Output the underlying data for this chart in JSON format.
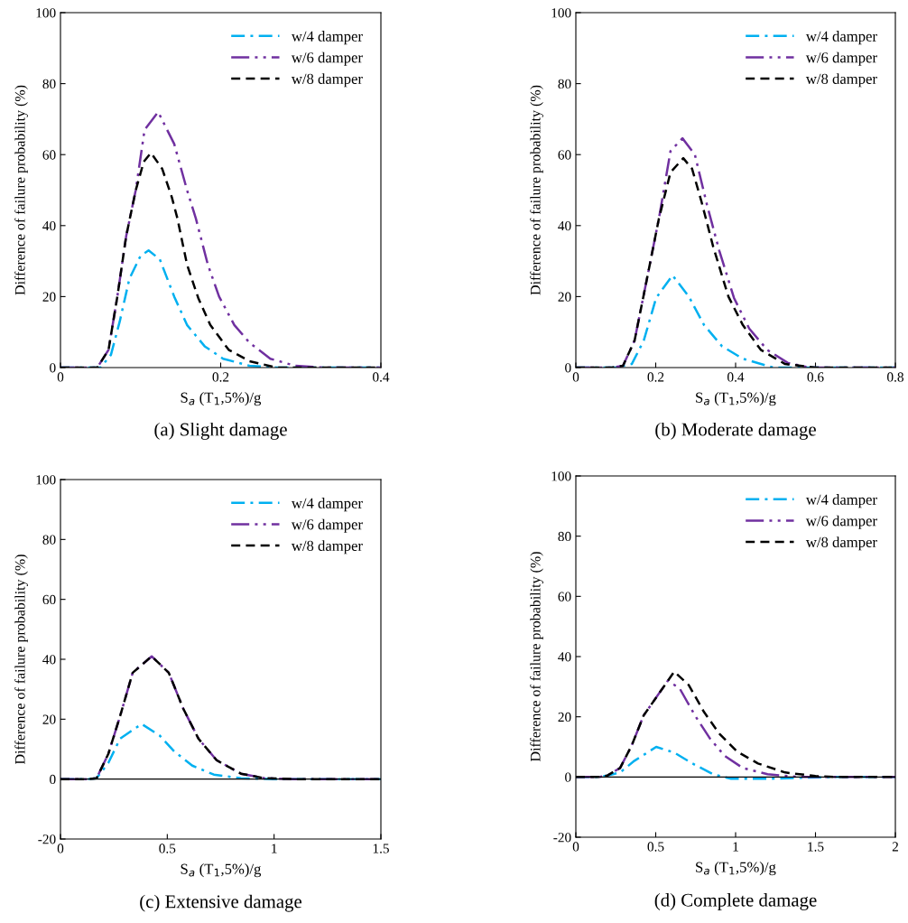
{
  "chart_data": [
    {
      "type": "line",
      "title": "(a) Slight damage",
      "xlabel": "S$_{a}$ (T$_{1}$,5%)/g",
      "ylabel": "Difference of failure probability (%)",
      "xlim": [
        0,
        0.4
      ],
      "xticks": [
        0,
        0.2,
        0.4
      ],
      "ylim": [
        0,
        100
      ],
      "yticks": [
        0,
        20,
        40,
        60,
        80,
        100
      ],
      "legend": "top right",
      "grid": false,
      "marker": "none",
      "series": [
        {
          "name": "w/4 damper",
          "color": "#00b0f0",
          "line_style": "dashdot",
          "x": [
            0,
            0.05,
            0.063,
            0.074,
            0.086,
            0.1,
            0.11,
            0.124,
            0.142,
            0.158,
            0.18,
            0.203,
            0.236,
            0.27,
            0.4
          ],
          "values": [
            0,
            0,
            3.6,
            13,
            25,
            31.5,
            33,
            30.5,
            20,
            12,
            6,
            2.5,
            0.5,
            0,
            0
          ]
        },
        {
          "name": "w/6 damper",
          "color": "#7030a0",
          "line_style": "dashdotdot",
          "x": [
            0,
            0.046,
            0.06,
            0.071,
            0.082,
            0.094,
            0.105,
            0.122,
            0.142,
            0.158,
            0.169,
            0.184,
            0.198,
            0.217,
            0.236,
            0.262,
            0.293,
            0.33,
            0.4
          ],
          "values": [
            0,
            0,
            5,
            20,
            37,
            50,
            67,
            72,
            63,
            50,
            42,
            29,
            20,
            12,
            7,
            2.5,
            0.5,
            0,
            0
          ]
        },
        {
          "name": "w/8 damper",
          "color": "#000000",
          "line_style": "dashed",
          "x": [
            0,
            0.046,
            0.06,
            0.071,
            0.082,
            0.094,
            0.104,
            0.113,
            0.127,
            0.139,
            0.146,
            0.158,
            0.172,
            0.187,
            0.21,
            0.236,
            0.27,
            0.4
          ],
          "values": [
            0,
            0,
            5,
            20,
            37,
            50,
            58,
            60.5,
            56,
            48,
            42,
            29,
            19.6,
            12,
            5,
            1.8,
            0,
            0
          ]
        }
      ]
    },
    {
      "type": "line",
      "title": "(b) Moderate damage",
      "xlabel": "S$_{a}$ (T$_{1}$,5%)/g",
      "ylabel": "Difference of failure probability (%)",
      "xlim": [
        0,
        0.8
      ],
      "xticks": [
        0,
        0.2,
        0.4,
        0.6,
        0.8
      ],
      "ylim": [
        0,
        100
      ],
      "yticks": [
        0,
        20,
        40,
        60,
        80,
        100
      ],
      "legend": "top right",
      "grid": false,
      "marker": "none",
      "series": [
        {
          "name": "w/4 damper",
          "color": "#00b0f0",
          "line_style": "dashdot",
          "x": [
            0,
            0.1,
            0.14,
            0.17,
            0.201,
            0.242,
            0.283,
            0.321,
            0.366,
            0.418,
            0.495,
            0.8
          ],
          "values": [
            0,
            0,
            1,
            7.6,
            19.6,
            26,
            20,
            12,
            6,
            2.5,
            0,
            0
          ]
        },
        {
          "name": "w/6 damper",
          "color": "#7030a0",
          "line_style": "dashdotdot",
          "x": [
            0,
            0.09,
            0.118,
            0.147,
            0.178,
            0.208,
            0.237,
            0.267,
            0.298,
            0.328,
            0.359,
            0.396,
            0.434,
            0.479,
            0.531,
            0.585,
            0.8
          ],
          "values": [
            0,
            0,
            0.5,
            7.6,
            25,
            42,
            61,
            64.6,
            60,
            46,
            33,
            19.6,
            11,
            5,
            1.3,
            0,
            0
          ]
        },
        {
          "name": "w/8 damper",
          "color": "#000000",
          "line_style": "dashed",
          "x": [
            0,
            0.09,
            0.118,
            0.147,
            0.178,
            0.208,
            0.237,
            0.269,
            0.291,
            0.314,
            0.344,
            0.382,
            0.418,
            0.463,
            0.524,
            0.6,
            0.8
          ],
          "values": [
            0,
            0,
            0.5,
            7.6,
            25,
            42,
            55,
            59,
            56,
            47,
            34,
            20,
            12,
            5,
            1,
            0,
            0
          ]
        }
      ]
    },
    {
      "type": "line",
      "title": "(c) Extensive damage",
      "xlabel": "S$_{a}$ (T$_{1}$,5%)/g",
      "ylabel": "Difference of failure probability (%)",
      "xlim": [
        0,
        1.5
      ],
      "xticks": [
        0,
        0.5,
        1,
        1.5
      ],
      "ylim": [
        -20,
        100
      ],
      "yticks": [
        -20,
        0,
        20,
        40,
        60,
        80,
        100
      ],
      "legend": "top right",
      "grid": false,
      "marker": "none",
      "ref_lines": [
        {
          "axis": "y",
          "value": 0,
          "color": "#000000"
        }
      ],
      "series": [
        {
          "name": "w/4 damper",
          "color": "#00b0f0",
          "line_style": "dashdot",
          "x": [
            0,
            0.127,
            0.169,
            0.224,
            0.279,
            0.38,
            0.465,
            0.532,
            0.617,
            0.718,
            0.845,
            1.0,
            1.5
          ],
          "values": [
            0,
            0,
            0.3,
            5.4,
            13.5,
            18.4,
            14.5,
            9.3,
            4.5,
            1.5,
            0.3,
            0,
            0
          ]
        },
        {
          "name": "w/6 damper",
          "color": "#7030a0",
          "line_style": "dashdotdot",
          "x": [
            0,
            0.127,
            0.169,
            0.224,
            0.279,
            0.338,
            0.427,
            0.507,
            0.575,
            0.646,
            0.731,
            0.845,
            0.955,
            1.1,
            1.5
          ],
          "values": [
            0,
            0,
            0.3,
            8.4,
            21,
            35.5,
            41,
            35.5,
            23.5,
            13.5,
            6.3,
            1.8,
            0.3,
            0,
            0
          ]
        },
        {
          "name": "w/8 damper",
          "color": "#000000",
          "line_style": "dashed",
          "x": [
            0,
            0.127,
            0.169,
            0.224,
            0.279,
            0.338,
            0.427,
            0.507,
            0.575,
            0.646,
            0.731,
            0.845,
            0.955,
            1.1,
            1.5
          ],
          "values": [
            0,
            0,
            0.3,
            8.4,
            21,
            35.5,
            41,
            35.5,
            23.5,
            13.5,
            6.3,
            1.8,
            0.3,
            0,
            0
          ]
        }
      ]
    },
    {
      "type": "line",
      "title": "(d) Complete damage",
      "xlabel": "S$_{a}$ (T$_{1}$,5%)/g",
      "ylabel": "Difference of failure probability (%)",
      "xlim": [
        0,
        2
      ],
      "xticks": [
        0,
        0.5,
        1,
        1.5,
        2
      ],
      "ylim": [
        -20,
        100
      ],
      "yticks": [
        -20,
        0,
        20,
        40,
        60,
        80,
        100
      ],
      "legend": "top right",
      "grid": false,
      "marker": "none",
      "ref_lines": [
        {
          "axis": "y",
          "value": 0,
          "color": "#000000"
        }
      ],
      "series": [
        {
          "name": "w/4 damper",
          "color": "#00b0f0",
          "line_style": "dashdot",
          "x": [
            0,
            0.15,
            0.198,
            0.277,
            0.367,
            0.503,
            0.616,
            0.729,
            0.859,
            0.972,
            1.2,
            1.4,
            1.6,
            2
          ],
          "values": [
            0,
            0,
            0.5,
            1.5,
            5.4,
            10,
            8.1,
            4.5,
            0.9,
            -0.6,
            -0.6,
            -0.3,
            0,
            0
          ]
        },
        {
          "name": "w/6 damper",
          "color": "#7030a0",
          "line_style": "dashdotdot",
          "x": [
            0,
            0.15,
            0.198,
            0.277,
            0.35,
            0.424,
            0.576,
            0.65,
            0.746,
            0.842,
            0.932,
            1.045,
            1.2,
            1.4,
            2
          ],
          "values": [
            0,
            0,
            0.5,
            3,
            10.5,
            20.4,
            32,
            29.4,
            20.4,
            12.6,
            7,
            3,
            0.9,
            0,
            0
          ]
        },
        {
          "name": "w/8 damper",
          "color": "#000000",
          "line_style": "dashed",
          "x": [
            0,
            0.15,
            0.198,
            0.277,
            0.35,
            0.424,
            0.616,
            0.706,
            0.802,
            0.898,
            1.01,
            1.14,
            1.31,
            1.5,
            1.64,
            2
          ],
          "values": [
            0,
            0,
            0.5,
            3,
            10.5,
            20.4,
            35,
            30.6,
            21.6,
            14.4,
            8.4,
            4.5,
            1.5,
            0.3,
            0,
            0
          ]
        }
      ]
    }
  ]
}
